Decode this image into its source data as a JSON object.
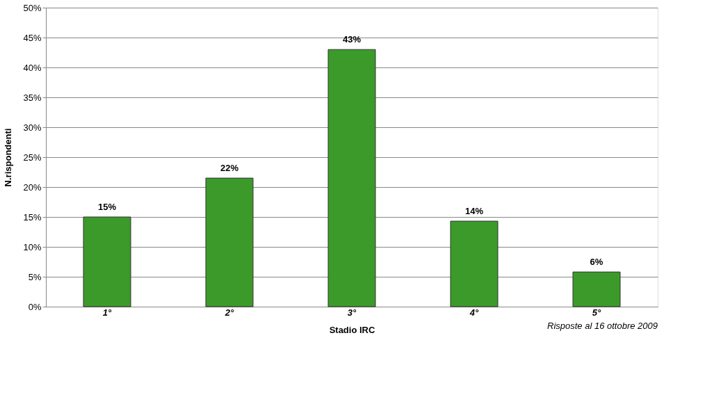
{
  "chart_data": {
    "type": "bar",
    "xlabel": "Stadio IRC",
    "ylabel": "N.rispondenti",
    "categories": [
      "1°",
      "2°",
      "3°",
      "4°",
      "5°"
    ],
    "values": [
      15,
      21.5,
      43,
      14.3,
      5.8
    ],
    "value_labels": [
      "15%",
      "22%",
      "43%",
      "14%",
      "6%"
    ],
    "color": "#3c9a2a",
    "ylim": [
      0,
      50
    ],
    "yticks": [
      {
        "value": 0,
        "label": "0%"
      },
      {
        "value": 5,
        "label": "5%"
      },
      {
        "value": 10,
        "label": "10%"
      },
      {
        "value": 15,
        "label": "15%"
      },
      {
        "value": 20,
        "label": "20%"
      },
      {
        "value": 25,
        "label": "25%"
      },
      {
        "value": 30,
        "label": "30%"
      },
      {
        "value": 35,
        "label": "35%"
      },
      {
        "value": 40,
        "label": "40%"
      },
      {
        "value": 45,
        "label": "45%"
      },
      {
        "value": 50,
        "label": "50%"
      }
    ],
    "grid": "y",
    "annotations": [
      "Risposte al 16 ottobre 2009"
    ]
  }
}
